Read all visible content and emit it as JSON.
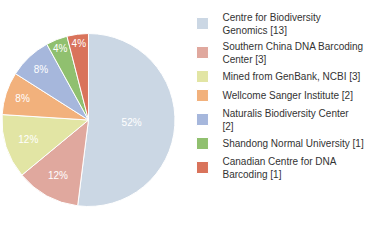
{
  "chart_data": {
    "type": "pie",
    "categories": [
      "Centre for Biodiversity Genomics [13]",
      "Southern China DNA Barcoding Center [3]",
      "Mined from GenBank, NCBI [3]",
      "Wellcome Sanger Institute [2]",
      "Naturalis Biodiversity Center [2]",
      "Shandong Normal University [1]",
      "Canadian Centre for DNA Barcoding [1]"
    ],
    "values": [
      52,
      12,
      12,
      8,
      8,
      4,
      4
    ],
    "value_labels": [
      "52%",
      "12%",
      "12%",
      "8%",
      "8%",
      "4%",
      "4%"
    ],
    "colors": [
      "#cbd7e4",
      "#e0a89e",
      "#e2e5a4",
      "#f2b17c",
      "#a6b7dc",
      "#90c06f",
      "#d9735b"
    ],
    "data_labels": true,
    "legend": "right"
  }
}
